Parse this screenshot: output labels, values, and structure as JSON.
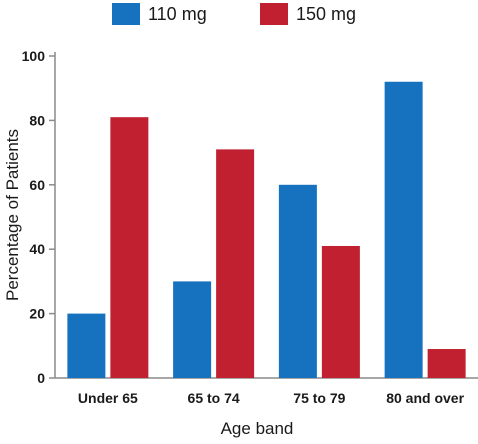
{
  "chart_data": {
    "type": "bar",
    "categories": [
      "Under 65",
      "65 to 74",
      "75 to 79",
      "80 and over"
    ],
    "series": [
      {
        "name": "110 mg",
        "values": [
          20,
          30,
          60,
          92
        ],
        "color": "#1671be"
      },
      {
        "name": "150 mg",
        "values": [
          81,
          71,
          41,
          9
        ],
        "color": "#c0202f"
      }
    ],
    "xlabel": "Age band",
    "ylabel": "Percentage of Patients",
    "ylim": [
      0,
      100
    ],
    "yticks": [
      0,
      20,
      40,
      60,
      80,
      100
    ],
    "grid": false,
    "legend_position": "top-center"
  }
}
